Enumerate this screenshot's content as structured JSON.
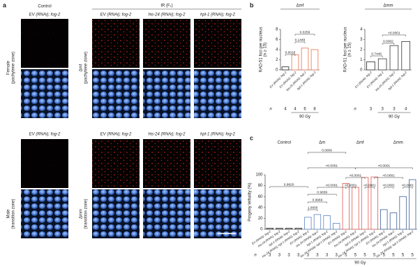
{
  "panel_a": {
    "label": "a",
    "control_header": "Control",
    "ir_header": "IR (F₁)",
    "top_columns": [
      "EV (RNAi); fog-2",
      "EV (RNAi); fog-2",
      "his-24 (RNAi); fog-2",
      "hpl-1 (RNAi); fog-2"
    ],
    "bottom_columns": [
      "EV (RNAi); fog-2",
      "EV (RNAi); fog-2",
      "his-24 (RNAi); fog-2",
      "hpl-1 (RNAi); fog-2"
    ],
    "row_labels": [
      [
        "Female",
        "(pachytene zone)"
      ],
      [
        "Δmf",
        "(pachytene zone)"
      ],
      [
        "Male",
        "(transition zone)"
      ],
      [
        "Δmm",
        "(transition zone)"
      ]
    ]
  },
  "chart_data": [
    {
      "type": "bar",
      "label": "b",
      "title": "Δmf",
      "ylabel": [
        "RAD-51 foci per nucleus",
        "(n ≥ 15)"
      ],
      "categories": [
        "EV (RNAi); fog-2",
        "EV (RNAi); fog-2",
        "his-24 (RNAi); fog-2",
        "hpl-1 (RNAi); fog-2"
      ],
      "values": [
        0.6,
        3.0,
        4.3,
        4.0
      ],
      "colors": [
        "#222222",
        "#e8704a",
        "#e8704a",
        "#e8704a"
      ],
      "ylim": [
        0,
        8
      ],
      "yticks": [
        0,
        2,
        4,
        6,
        8
      ],
      "n_label": "n",
      "n": [
        4,
        4,
        6,
        8
      ],
      "dose": "90 Gy",
      "annotations": [
        "0.0016",
        "0.1449",
        "0.0259"
      ]
    },
    {
      "type": "bar",
      "title": "Δmm",
      "ylabel": [
        "RAD-51 foci per nucleus",
        "(n ≥ 15)"
      ],
      "categories": [
        "EV (RNAi); fog-2",
        "EV (RNAi); fog-2",
        "his-24 (RNAi); fog-2",
        "hpl-1 (RNAi); fog-2"
      ],
      "values": [
        0.8,
        1.1,
        2.4,
        2.8
      ],
      "colors": [
        "#222222",
        "#333333",
        "#333333",
        "#333333"
      ],
      "ylim": [
        0,
        4
      ],
      "yticks": [
        0,
        1,
        2,
        3,
        4
      ],
      "n_label": "n",
      "n": [
        3,
        3,
        3,
        4
      ],
      "dose": "90 Gy",
      "annotations": [
        "0.7446",
        "0.0002",
        "<0.0001"
      ]
    },
    {
      "type": "bar",
      "label": "c",
      "ylabel": [
        "Progeny lethality (%)"
      ],
      "groups": [
        "Control",
        "Δm",
        "Δmf",
        "Δmm"
      ],
      "group_colors": [
        "#222222",
        "#5b84c4",
        "#e0574f",
        "#3c5f99"
      ],
      "categories": [
        "EV (RNAi); fog-2",
        "his-24 (RNAi); fog-2",
        "hpl-1 (RNAi); fog-2",
        "his-24 (RNAi); hpl-1 (RNAi); fog-2",
        "EV (RNAi); fog-2",
        "his-24 (RNAi); fog-2",
        "hpl-1 (RNAi); fog-2",
        "his-24 (RNAi); hpl-1 (RNAi); fog-2",
        "EV (RNAi); fog-2",
        "his-24 (RNAi); fog-2",
        "hpl-1 (RNAi); fog-2",
        "his-24 (RNAi); hpl-1 (RNAi); fog-2",
        "EV (RNAi); fog-2",
        "his-24 (RNAi); fog-2",
        "hpl-1 (RNAi); fog-2",
        "his-24 (RNAi); hpl-1 (RNAi); fog-2"
      ],
      "values": [
        2,
        2,
        2,
        2,
        22,
        27,
        25,
        11,
        84,
        77,
        95,
        96,
        36,
        30,
        60,
        91
      ],
      "ylim": [
        0,
        100
      ],
      "yticks": [
        0,
        20,
        40,
        60,
        80,
        100
      ],
      "n_label": "n",
      "n": [
        3,
        3,
        3,
        3,
        3,
        3,
        3,
        3,
        5,
        5,
        5,
        5,
        5,
        5,
        5,
        5
      ],
      "dose": "90 Gy",
      "annotations": [
        "1.0000",
        "0.9969",
        "0.9839",
        "0.9820",
        "0.0006",
        "<0.0001",
        "<0.0001",
        "<0.0001",
        "<0.0001",
        "<0.0001",
        "<0.0001",
        "<0.0001",
        "<0.0001",
        "<0.0001"
      ]
    }
  ]
}
